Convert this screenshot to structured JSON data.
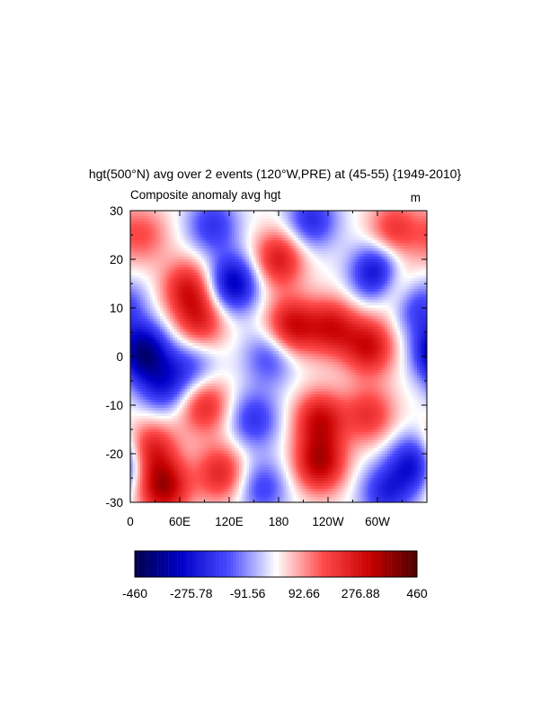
{
  "chart_data": {
    "type": "heatmap",
    "title": "hgt(500°N) avg over 2 events (120°W,PRE) at (45-55) {1949-2010}",
    "left_label": "Composite anomaly avg hgt",
    "right_label": "m",
    "x_ticks": [
      "0",
      "60E",
      "120E",
      "180",
      "120W",
      "60W"
    ],
    "y_ticks": [
      "30",
      "20",
      "10",
      "0",
      "-10",
      "-20",
      "-30"
    ],
    "xlim": [
      0,
      360
    ],
    "ylim": [
      -30,
      30
    ],
    "colorbar": {
      "labels": [
        "-460",
        "-275.78",
        "-91.56",
        "92.66",
        "276.88",
        "460"
      ],
      "range": [
        -460,
        460
      ],
      "colors": [
        "#00004c",
        "#0000c8",
        "#4a4aff",
        "#ffffff",
        "#ff4a4a",
        "#c80000",
        "#4c0000"
      ]
    },
    "anomaly_centers": [
      {
        "lon": 15,
        "lat": 1,
        "value": -380
      },
      {
        "lon": 70,
        "lat": 14,
        "value": 250
      },
      {
        "lon": 85,
        "lat": 7,
        "value": 220
      },
      {
        "lon": 125,
        "lat": 15,
        "value": -330
      },
      {
        "lon": 100,
        "lat": 27,
        "value": -200
      },
      {
        "lon": 180,
        "lat": 20,
        "value": 260
      },
      {
        "lon": 195,
        "lat": 6,
        "value": 300
      },
      {
        "lon": 245,
        "lat": 6,
        "value": 260
      },
      {
        "lon": 290,
        "lat": 2,
        "value": 280
      },
      {
        "lon": 325,
        "lat": 14,
        "value": 230
      },
      {
        "lon": 300,
        "lat": 17,
        "value": -340
      },
      {
        "lon": 345,
        "lat": 11,
        "value": -250
      },
      {
        "lon": 220,
        "lat": 28,
        "value": -220
      },
      {
        "lon": 170,
        "lat": 0,
        "value": -180
      },
      {
        "lon": 75,
        "lat": -2,
        "value": -160
      },
      {
        "lon": 40,
        "lat": -6,
        "value": -220
      },
      {
        "lon": 90,
        "lat": -10,
        "value": 230
      },
      {
        "lon": 230,
        "lat": -13,
        "value": 280
      },
      {
        "lon": 150,
        "lat": -13,
        "value": -200
      },
      {
        "lon": 290,
        "lat": -12,
        "value": 200
      },
      {
        "lon": 345,
        "lat": -22,
        "value": -280
      },
      {
        "lon": 310,
        "lat": -28,
        "value": -220
      },
      {
        "lon": 230,
        "lat": -22,
        "value": 320
      },
      {
        "lon": 40,
        "lat": -27,
        "value": 340
      },
      {
        "lon": 25,
        "lat": -19,
        "value": 240
      },
      {
        "lon": 110,
        "lat": -24,
        "value": 230
      },
      {
        "lon": 160,
        "lat": -27,
        "value": -180
      },
      {
        "lon": 320,
        "lat": 26,
        "value": 200
      },
      {
        "lon": 15,
        "lat": 25,
        "value": 150
      }
    ]
  }
}
